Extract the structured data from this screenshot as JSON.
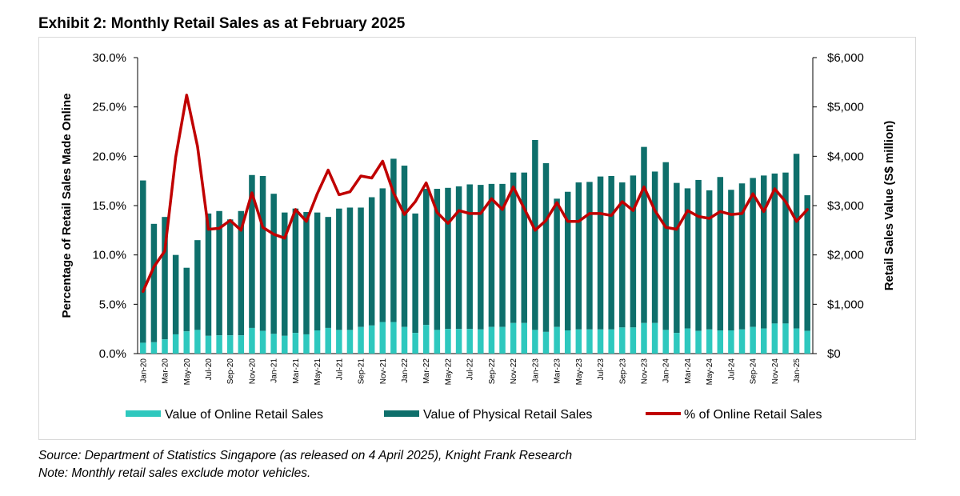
{
  "title": "Exhibit 2: Monthly Retail Sales as at February 2025",
  "footer": {
    "source": "Source: Department of Statistics Singapore (as released on 4 April 2025), Knight Frank Research",
    "note": "Note: Monthly retail sales exclude motor vehicles."
  },
  "chart_data": {
    "type": "bar",
    "title": "Exhibit 2: Monthly Retail Sales as at February 2025",
    "y_left_label": "Percentage of Retail Sales Made Online",
    "y_right_label": "Retail Sales Value (S$ million)",
    "y_left_ticks": [
      "0.0%",
      "5.0%",
      "10.0%",
      "15.0%",
      "20.0%",
      "25.0%",
      "30.0%"
    ],
    "y_right_ticks": [
      "$0",
      "$1,000",
      "$2,000",
      "$3,000",
      "$4,000",
      "$5,000",
      "$6,000"
    ],
    "y_left_range": [
      0,
      30
    ],
    "y_right_range": [
      0,
      6000
    ],
    "x_tick_labels": [
      "Jan-20",
      "Mar-20",
      "May-20",
      "Jul-20",
      "Sep-20",
      "Nov-20",
      "Jan-21",
      "Mar-21",
      "May-21",
      "Jul-21",
      "Sep-21",
      "Nov-21",
      "Jan-22",
      "Mar-22",
      "May-22",
      "Jul-22",
      "Sep-22",
      "Nov-22",
      "Jan-23",
      "Mar-23",
      "May-23",
      "Jul-23",
      "Sep-23",
      "Nov-23",
      "Jan-24",
      "Mar-24",
      "May-24",
      "Jul-24",
      "Sep-24",
      "Nov-24",
      "Jan-25"
    ],
    "months": [
      "Jan-20",
      "Feb-20",
      "Mar-20",
      "Apr-20",
      "May-20",
      "Jun-20",
      "Jul-20",
      "Aug-20",
      "Sep-20",
      "Oct-20",
      "Nov-20",
      "Dec-20",
      "Jan-21",
      "Feb-21",
      "Mar-21",
      "Apr-21",
      "May-21",
      "Jun-21",
      "Jul-21",
      "Aug-21",
      "Sep-21",
      "Oct-21",
      "Nov-21",
      "Dec-21",
      "Jan-22",
      "Feb-22",
      "Mar-22",
      "Apr-22",
      "May-22",
      "Jun-22",
      "Jul-22",
      "Aug-22",
      "Sep-22",
      "Oct-22",
      "Nov-22",
      "Dec-22",
      "Jan-23",
      "Feb-23",
      "Mar-23",
      "Apr-23",
      "May-23",
      "Jun-23",
      "Jul-23",
      "Aug-23",
      "Sep-23",
      "Oct-23",
      "Nov-23",
      "Dec-23",
      "Jan-24",
      "Feb-24",
      "Mar-24",
      "Apr-24",
      "May-24",
      "Jun-24",
      "Jul-24",
      "Aug-24",
      "Sep-24",
      "Oct-24",
      "Nov-24",
      "Dec-24",
      "Jan-25",
      "Feb-25"
    ],
    "series": [
      {
        "name": "Value of Online Retail Sales",
        "axis": "right",
        "color": "#2ec8be",
        "values": [
          220,
          230,
          290,
          390,
          450,
          480,
          360,
          370,
          370,
          370,
          520,
          460,
          400,
          360,
          420,
          390,
          470,
          520,
          480,
          480,
          540,
          570,
          640,
          640,
          540,
          420,
          580,
          480,
          500,
          500,
          500,
          490,
          540,
          540,
          620,
          620,
          480,
          440,
          540,
          470,
          490,
          490,
          490,
          490,
          530,
          530,
          620,
          620,
          480,
          420,
          510,
          460,
          490,
          470,
          470,
          490,
          540,
          510,
          610,
          610,
          510,
          460
        ]
      },
      {
        "name": "Value of Physical Retail Sales",
        "axis": "right",
        "color": "#0e6f6b",
        "values": [
          3290,
          2400,
          2480,
          1610,
          1290,
          1820,
          2480,
          2520,
          2350,
          2520,
          3100,
          3140,
          2840,
          2500,
          2520,
          2480,
          2390,
          2250,
          2460,
          2480,
          2420,
          2600,
          2710,
          3310,
          3270,
          2420,
          2760,
          2860,
          2860,
          2890,
          2930,
          2930,
          2900,
          2900,
          3050,
          3050,
          3850,
          3420,
          2600,
          2810,
          2980,
          2990,
          3100,
          3110,
          2940,
          3080,
          3570,
          3070,
          3400,
          3040,
          2840,
          3060,
          2820,
          3110,
          2850,
          2960,
          3020,
          3100,
          3040,
          3060,
          3540,
          2750
        ]
      },
      {
        "name": "% of Online Retail Sales",
        "axis": "left",
        "type": "line",
        "color": "#c00000",
        "values": [
          6.3,
          8.8,
          10.4,
          19.9,
          26.2,
          21.0,
          12.6,
          12.7,
          13.5,
          12.5,
          16.3,
          12.8,
          12.1,
          11.7,
          14.6,
          13.4,
          16.2,
          18.6,
          16.1,
          16.4,
          18.0,
          17.8,
          19.5,
          16.3,
          14.1,
          15.4,
          17.3,
          14.3,
          13.2,
          14.5,
          14.2,
          14.2,
          15.7,
          14.6,
          16.9,
          14.7,
          12.5,
          13.5,
          15.3,
          13.4,
          13.4,
          14.2,
          14.2,
          14.0,
          15.4,
          14.5,
          16.9,
          14.5,
          12.8,
          12.6,
          14.5,
          13.9,
          13.7,
          14.4,
          14.1,
          14.2,
          16.2,
          14.4,
          16.7,
          15.4,
          13.4,
          14.6
        ]
      }
    ],
    "legend": [
      "Value of Online Retail Sales",
      "Value of Physical Retail Sales",
      "% of Online Retail Sales"
    ],
    "legend_position": "bottom"
  }
}
